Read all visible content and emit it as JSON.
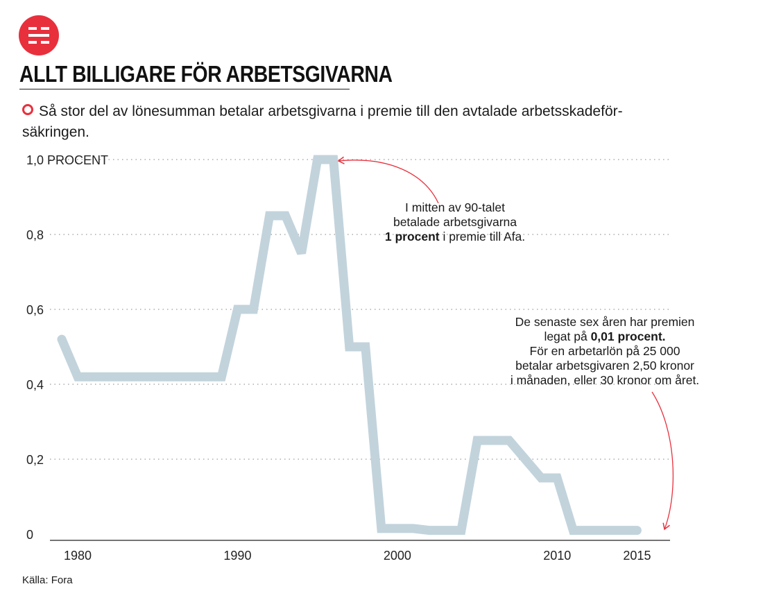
{
  "header": {
    "title": "ALLT BILLIGARE FÖR ARBETSGIVARNA",
    "subtitle_line1": "Så stor del av lönesumman betalar arbetsgivarna i premie till den avtalade arbetsskadeför-",
    "subtitle_line2": "säkringen."
  },
  "source": "Källa: Fora",
  "colors": {
    "brand": "#e8303d",
    "line": "#c2d3dc",
    "grid": "#9a9a9a",
    "annotation_arrow": "#e8303d"
  },
  "chart_data": {
    "type": "line",
    "title": "",
    "xlabel": "",
    "ylabel": "",
    "xlim": [
      1979,
      2015
    ],
    "ylim": [
      0,
      1.0
    ],
    "grid": "horizontal dotted",
    "y_ticks": [
      {
        "value": 0,
        "label": "0"
      },
      {
        "value": 0.2,
        "label": "0,2"
      },
      {
        "value": 0.4,
        "label": "0,4"
      },
      {
        "value": 0.6,
        "label": "0,6"
      },
      {
        "value": 0.8,
        "label": "0,8"
      },
      {
        "value": 1.0,
        "label": "1,0 PROCENT"
      }
    ],
    "x_ticks": [
      {
        "value": 1980,
        "label": "1980"
      },
      {
        "value": 1990,
        "label": "1990"
      },
      {
        "value": 2000,
        "label": "2000"
      },
      {
        "value": 2010,
        "label": "2010"
      },
      {
        "value": 2015,
        "label": "2015"
      }
    ],
    "series": [
      {
        "values": [
          [
            1979.0,
            0.52
          ],
          [
            1980.0,
            0.42
          ],
          [
            1989.0,
            0.42
          ],
          [
            1990.0,
            0.6
          ],
          [
            1991.0,
            0.6
          ],
          [
            1992.0,
            0.85
          ],
          [
            1993.0,
            0.85
          ],
          [
            1994.0,
            0.75
          ],
          [
            1995.0,
            1.0
          ],
          [
            1996.0,
            1.0
          ],
          [
            1997.0,
            0.5
          ],
          [
            1998.0,
            0.5
          ],
          [
            1999.0,
            0.015
          ],
          [
            2000.0,
            0.015
          ],
          [
            2001.0,
            0.015
          ],
          [
            2002.0,
            0.01
          ],
          [
            2004.0,
            0.01
          ],
          [
            2005.0,
            0.25
          ],
          [
            2007.0,
            0.25
          ],
          [
            2008.0,
            0.2
          ],
          [
            2009.0,
            0.15
          ],
          [
            2010.0,
            0.15
          ],
          [
            2011.0,
            0.01
          ],
          [
            2015.0,
            0.01
          ]
        ]
      }
    ],
    "annotations": [
      {
        "lines": [
          [
            {
              "text": "I mitten av 90-talet",
              "bold": false
            }
          ],
          [
            {
              "text": "betalade arbetsgivarna",
              "bold": false
            }
          ],
          [
            {
              "text": "1 procent",
              "bold": true
            },
            {
              "text": " i premie till Afa.",
              "bold": false
            }
          ]
        ],
        "points_to": [
          1996,
          1.0
        ]
      },
      {
        "lines": [
          [
            {
              "text": "De senaste sex åren har premien",
              "bold": false
            }
          ],
          [
            {
              "text": "legat på ",
              "bold": false
            },
            {
              "text": "0,01 procent.",
              "bold": true
            }
          ],
          [
            {
              "text": "För en arbetarlön på 25 000",
              "bold": false
            }
          ],
          [
            {
              "text": "betalar arbetsgivaren 2,50 kronor",
              "bold": false
            }
          ],
          [
            {
              "text": "i månaden, eller 30 kronor om året.",
              "bold": false
            }
          ]
        ],
        "points_to": [
          2015,
          0.01
        ]
      }
    ]
  }
}
